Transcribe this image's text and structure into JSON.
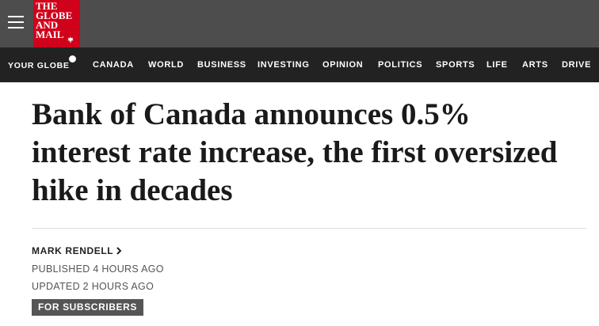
{
  "header": {
    "logo": [
      "THE",
      "GLOBE",
      "AND",
      "MAIL"
    ]
  },
  "nav": {
    "your_globe": "YOUR GLOBE",
    "items": [
      "CANADA",
      "WORLD",
      "BUSINESS",
      "INVESTING",
      "OPINION",
      "POLITICS",
      "SPORTS",
      "LIFE",
      "ARTS",
      "DRIVE"
    ]
  },
  "article": {
    "headline": "Bank of Canada announces 0.5% interest rate increase, the first oversized hike in decades",
    "author": "MARK RENDELL",
    "published": "PUBLISHED 4 HOURS AGO",
    "updated": "UPDATED 2 HOURS AGO",
    "badge": "FOR SUBSCRIBERS"
  }
}
